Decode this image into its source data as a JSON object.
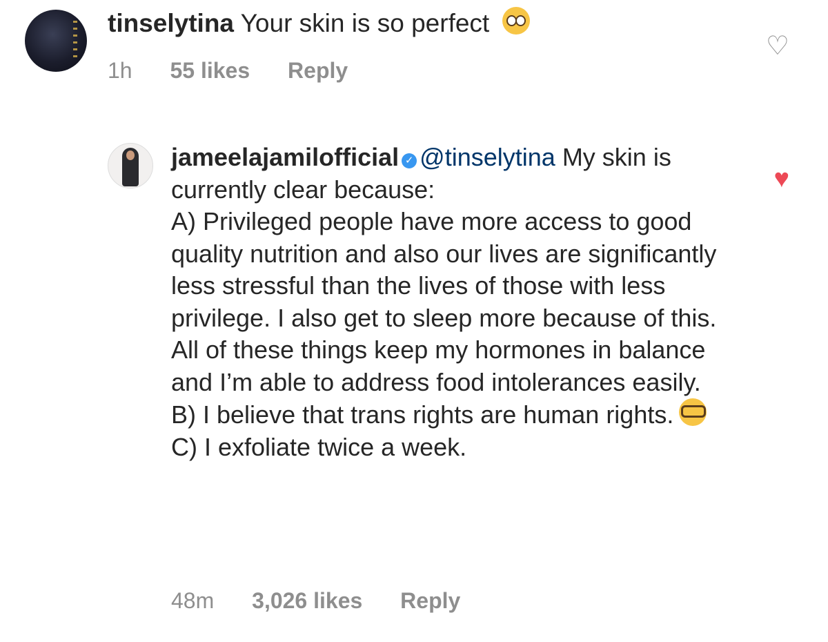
{
  "comment": {
    "username": "tinselytina",
    "text": "Your skin is so perfect",
    "emoji": "pleading-face",
    "time": "1h",
    "likes": "55 likes",
    "reply_label": "Reply",
    "liked": false
  },
  "reply": {
    "username": "jameelajamilofficial",
    "verified": true,
    "mention": "@tinselytina",
    "paragraphs": [
      "My skin is currently clear because:",
      "A) Privileged people have more access to good quality nutrition and also our lives are significantly less stressful than the lives of those with less privilege. I also get to sleep more because of this. All of these things keep my hormones in balance and I’m able to address food intolerances easily.",
      "B) I believe that trans rights are human rights.",
      "C) I exfoliate twice a week."
    ],
    "emoji": "nerd-face",
    "time": "48m",
    "likes": "3,026 likes",
    "reply_label": "Reply",
    "liked": true
  },
  "colors": {
    "heart_liked": "#ed4956",
    "verified": "#3897f0",
    "mention": "#003569",
    "meta": "#8e8e8e"
  }
}
